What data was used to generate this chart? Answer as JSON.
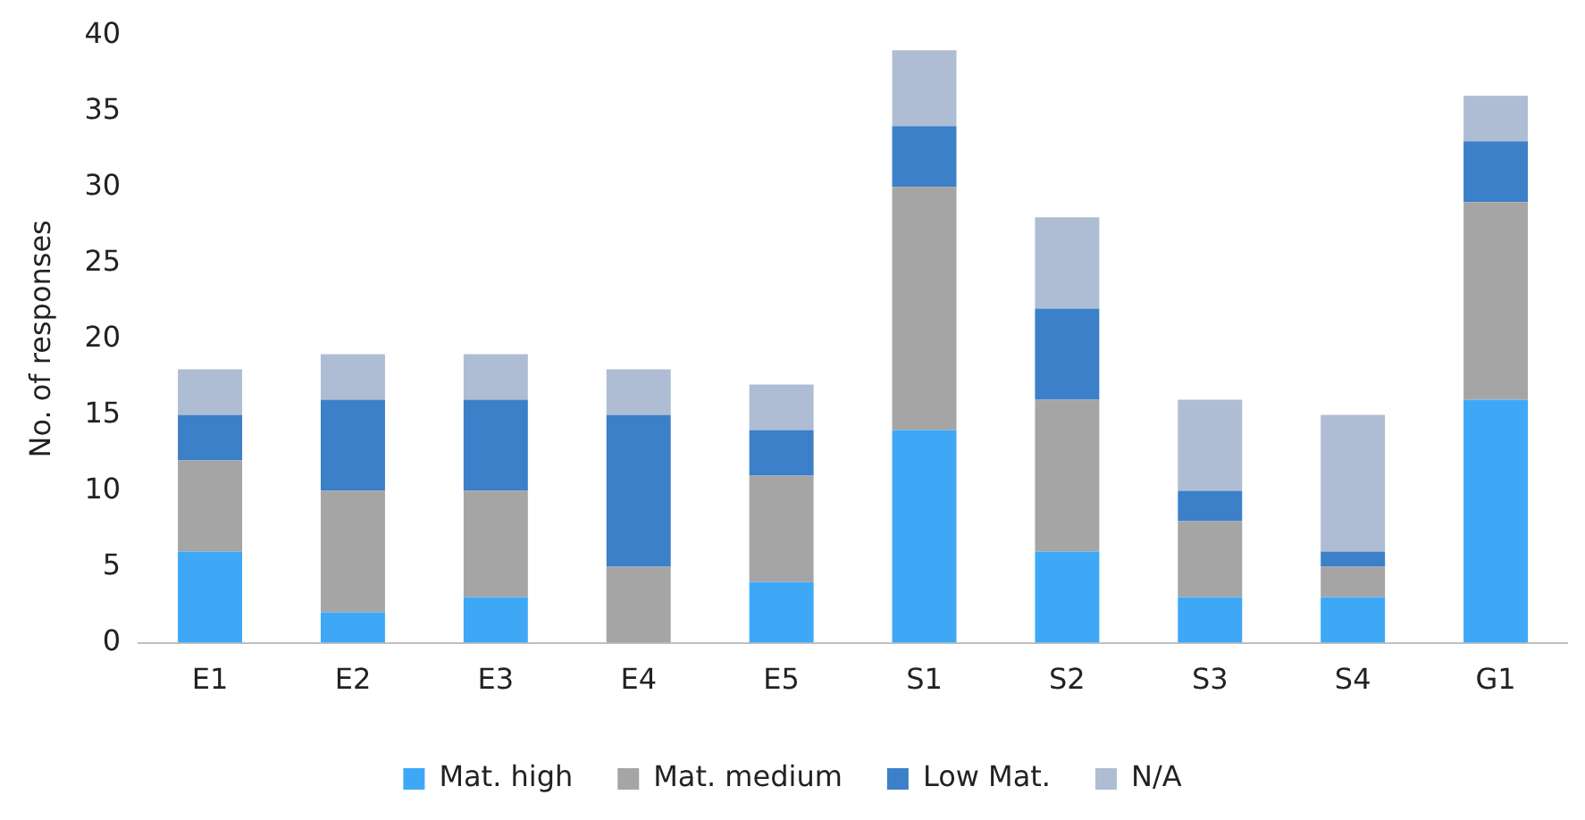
{
  "chart_data": {
    "type": "bar",
    "stacked": true,
    "ylabel": "No. of responses",
    "categories": [
      "E1",
      "E2",
      "E3",
      "E4",
      "E5",
      "S1",
      "S2",
      "S3",
      "S4",
      "G1"
    ],
    "series": [
      {
        "name": "Mat. high",
        "color": "#3ea8f7",
        "values": [
          6,
          2,
          3,
          0,
          4,
          14,
          6,
          3,
          3,
          16
        ]
      },
      {
        "name": "Mat. medium",
        "color": "#a5a5a5",
        "values": [
          6,
          8,
          7,
          5,
          7,
          16,
          10,
          5,
          2,
          13
        ]
      },
      {
        "name": "Low Mat.",
        "color": "#3b80c8",
        "values": [
          3,
          6,
          6,
          10,
          3,
          4,
          6,
          2,
          1,
          4
        ]
      },
      {
        "name": "N/A",
        "color": "#aebdd3",
        "values": [
          3,
          3,
          3,
          3,
          3,
          5,
          6,
          6,
          9,
          3
        ]
      }
    ],
    "ylim": [
      0,
      40
    ],
    "yticks": [
      0,
      5,
      10,
      15,
      20,
      25,
      30,
      35,
      40
    ],
    "grid": false,
    "legend": "bottom"
  }
}
